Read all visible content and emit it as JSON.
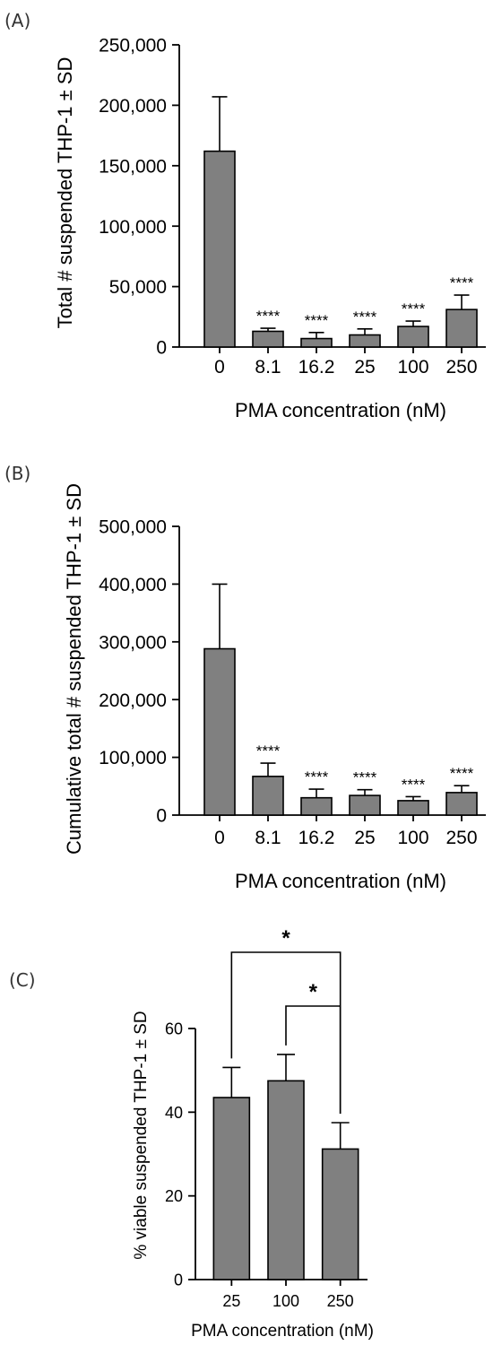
{
  "chart_data": [
    {
      "panel_label": "(A)",
      "type": "bar",
      "categories": [
        "0",
        "8.1",
        "16.2",
        "25",
        "100",
        "250"
      ],
      "values": [
        162000,
        13000,
        7000,
        10000,
        17000,
        31000
      ],
      "errors": [
        45000,
        2500,
        5000,
        5000,
        4500,
        12000
      ],
      "significance": [
        "",
        "****",
        "****",
        "****",
        "****",
        "****"
      ],
      "ylim": [
        0,
        250000
      ],
      "yticks": [
        0,
        50000,
        100000,
        150000,
        200000,
        250000
      ],
      "ytick_labels": [
        "0",
        "50,000",
        "100,000",
        "150,000",
        "200,000",
        "250,000"
      ],
      "ylabel": "Total # suspended THP-1 ± SD",
      "xlabel": "PMA concentration (nM)",
      "bar_color": "#808080"
    },
    {
      "panel_label": "(B)",
      "type": "bar",
      "categories": [
        "0",
        "8.1",
        "16.2",
        "25",
        "100",
        "250"
      ],
      "values": [
        288000,
        67000,
        30000,
        34000,
        25000,
        39000
      ],
      "errors": [
        112000,
        23000,
        15000,
        10000,
        7000,
        12000
      ],
      "significance": [
        "",
        "****",
        "****",
        "****",
        "****",
        "****"
      ],
      "ylim": [
        0,
        500000
      ],
      "yticks": [
        0,
        100000,
        200000,
        300000,
        400000,
        500000
      ],
      "ytick_labels": [
        "0",
        "100,000",
        "200,000",
        "300,000",
        "400,000",
        "500,000"
      ],
      "ylabel": "Cumulative total # suspended THP-1 ± SD",
      "xlabel": "PMA concentration (nM)",
      "bar_color": "#808080"
    },
    {
      "panel_label": "(C)",
      "type": "bar",
      "categories": [
        "25",
        "100",
        "250"
      ],
      "values": [
        43.5,
        47.5,
        31.2
      ],
      "errors": [
        7.2,
        6.3,
        6.3
      ],
      "comparisons": [
        {
          "from": 0,
          "to": 2,
          "label": "*"
        },
        {
          "from": 1,
          "to": 2,
          "label": "*"
        }
      ],
      "ylim": [
        0,
        60
      ],
      "yticks": [
        0,
        20,
        40,
        60
      ],
      "ytick_labels": [
        "0",
        "20",
        "40",
        "60"
      ],
      "ylabel": "% viable suspended THP-1 ± SD",
      "xlabel": "PMA concentration (nM)",
      "bar_color": "#808080"
    }
  ]
}
